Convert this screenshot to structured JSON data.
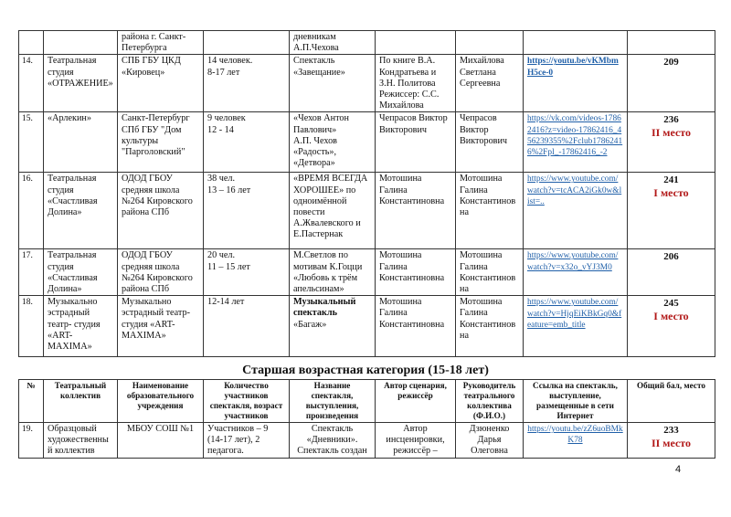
{
  "table1": {
    "continuation": {
      "institution": "района г. Санкт-Петербурга",
      "title": "дневникам А.П.Чехова"
    },
    "rows": [
      {
        "num": "14.",
        "collective": "Театральная студия «ОТРАЖЕНИЕ»",
        "institution": "СПБ ГБУ ЦКД «Кировец»",
        "participants": "14 человек.\n8-17 лет",
        "title": "Спектакль «Завещание»",
        "author": "По книге В.А. Кондратьева и З.Н. Политова Режиссер: С.С. Михайлова",
        "leader": "Михайлова Светлана Сергеевна",
        "link": "https://youtu.be/vKMbmH5ce-0",
        "score": "209",
        "place": ""
      },
      {
        "num": "15.",
        "collective": "«Арлекин»",
        "institution": "Санкт-Петербург СПб ГБУ \"Дом культуры \"Парголовский\"",
        "participants": "9 человек\n12 - 14",
        "title": "«Чехов Антон Павлович»\nА.П. Чехов\n«Радость»,\n«Детвора»",
        "author": "Чепрасов Виктор Викторович",
        "leader": "Чепрасов Виктор Викторович",
        "link": "https://vk.com/videos-17862416?z=video-17862416_456239355%2Fclub17862416%2Fpl_-17862416_-2",
        "score": "236",
        "place": "II место"
      },
      {
        "num": "16.",
        "collective": "Театральная студия «Счастливая Долина»",
        "institution": "ОДОД ГБОУ средняя школа №264 Кировского района СПб",
        "participants": "38 чел.\n13 – 16 лет",
        "title": "«ВРЕМЯ ВСЕГДА ХОРОШЕЕ» по одноимённой повести А.Жвалевского и Е.Пастернак",
        "author": "Мотошина Галина Константиновна",
        "leader": "Мотошина Галина Константинов на",
        "link": " https://www.youtube.com/watch?v=tcACA2iGk0w&list=..",
        "score": "241",
        "place": "I  место"
      },
      {
        "num": "17.",
        "collective": "Театральная студия «Счастливая Долина»",
        "institution": "ОДОД ГБОУ средняя школа №264 Кировского района СПб",
        "participants": "20 чел.\n11 – 15 лет",
        "title": "М.Светлов по мотивам К.Гоцци «Любовь к трём апельсинам»",
        "author": "Мотошина Галина Константиновна",
        "leader": "Мотошина Галина Константинов на",
        "link": "https://www.youtube.com/watch?v=x32o_vYJ3M0",
        "score": "206",
        "place": ""
      },
      {
        "num": "18.",
        "collective": "Музыкально эстрадный театр- студия «ART-MAXIMA»",
        "institution": "Музыкально эстрадный театр-студия «ART-MAXIMA»",
        "participants": "12-14 лет",
        "title_bold": "Музыкальный спектакль",
        "title": "«Багаж»",
        "author": "Мотошина Галина Константиновна",
        "leader": "Мотошина Галина Константинов на",
        "link": "https://www.youtube.com/watch?v=HjqEiKBkGq0&feature=emb_title",
        "score": "245",
        "place": "I  место"
      }
    ]
  },
  "section_title": "Старшая возрастная категория (15-18 лет)",
  "table2": {
    "headers": [
      "№",
      "Театральный коллектив",
      "Наименование образовательного учреждения",
      "Количество участников спектакля, возраст участников",
      "Название спектакля, выступления, произведения",
      "Автор сценария, режиссёр",
      "Руководитель театрального коллектива (Ф.И.О.)",
      "Ссылка на спектакль, выступление, размещенные в сети Интернет",
      "Общий бал, место"
    ],
    "rows": [
      {
        "num": "19.",
        "collective": "Образцовый художественны й коллектив",
        "institution": "МБОУ СОШ №1",
        "participants": "Участников – 9 (14-17 лет), 2 педагога.",
        "title": "Спектакль «Дневники». Спектакль создан",
        "author": "Автор инсценировки, режиссёр –",
        "leader": "Дзюненко Дарья Олеговна",
        "link": "https://youtu.be/zZ6uoBMkK78",
        "score": "233",
        "place": "II место"
      }
    ]
  },
  "page_number": "4",
  "colors": {
    "link": "#1f5fa8",
    "place": "#b21818"
  }
}
